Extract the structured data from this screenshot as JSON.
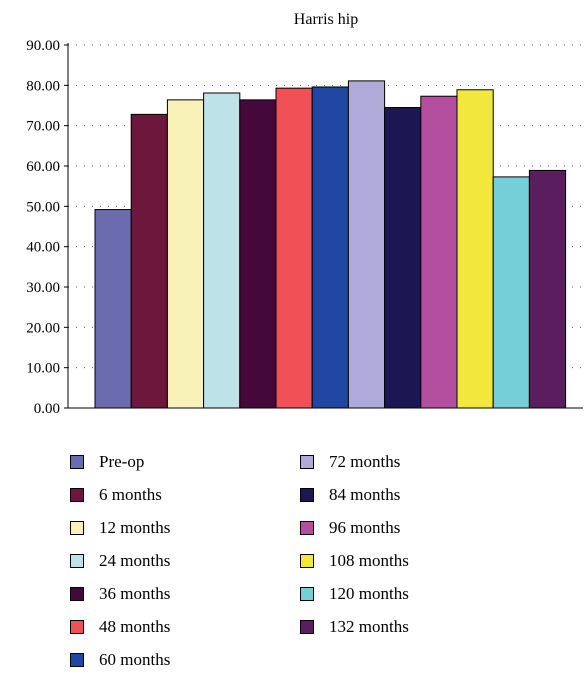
{
  "chart_data": {
    "type": "bar",
    "title": "Harris hip",
    "xlabel": "",
    "ylabel": "",
    "ylim": [
      0,
      90
    ],
    "yticks": [
      "0.00",
      "10.00",
      "20.00",
      "30.00",
      "40.00",
      "50.00",
      "60.00",
      "70.00",
      "80.00",
      "90.00"
    ],
    "grid": "horizontal dotted",
    "legend_position": "bottom",
    "series": [
      {
        "name": "Pre-op",
        "value": 49.2,
        "color": "#6b6bb0"
      },
      {
        "name": "6 months",
        "value": 72.8,
        "color": "#6e173c"
      },
      {
        "name": "12 months",
        "value": 76.4,
        "color": "#f8f2b8"
      },
      {
        "name": "24 months",
        "value": 78.1,
        "color": "#bde3e8"
      },
      {
        "name": "36 months",
        "value": 76.4,
        "color": "#44093a"
      },
      {
        "name": "48 months",
        "value": 79.3,
        "color": "#ef5157"
      },
      {
        "name": "60 months",
        "value": 79.6,
        "color": "#1f46a0"
      },
      {
        "name": "72 months",
        "value": 81.1,
        "color": "#b0aad8"
      },
      {
        "name": "84 months",
        "value": 74.5,
        "color": "#1c1752"
      },
      {
        "name": "96 months",
        "value": 77.3,
        "color": "#b34f9e"
      },
      {
        "name": "108 months",
        "value": 78.9,
        "color": "#f2e83c"
      },
      {
        "name": "120 months",
        "value": 57.3,
        "color": "#74cfd8"
      },
      {
        "name": "132 months",
        "value": 58.9,
        "color": "#5a1d5e"
      }
    ]
  }
}
